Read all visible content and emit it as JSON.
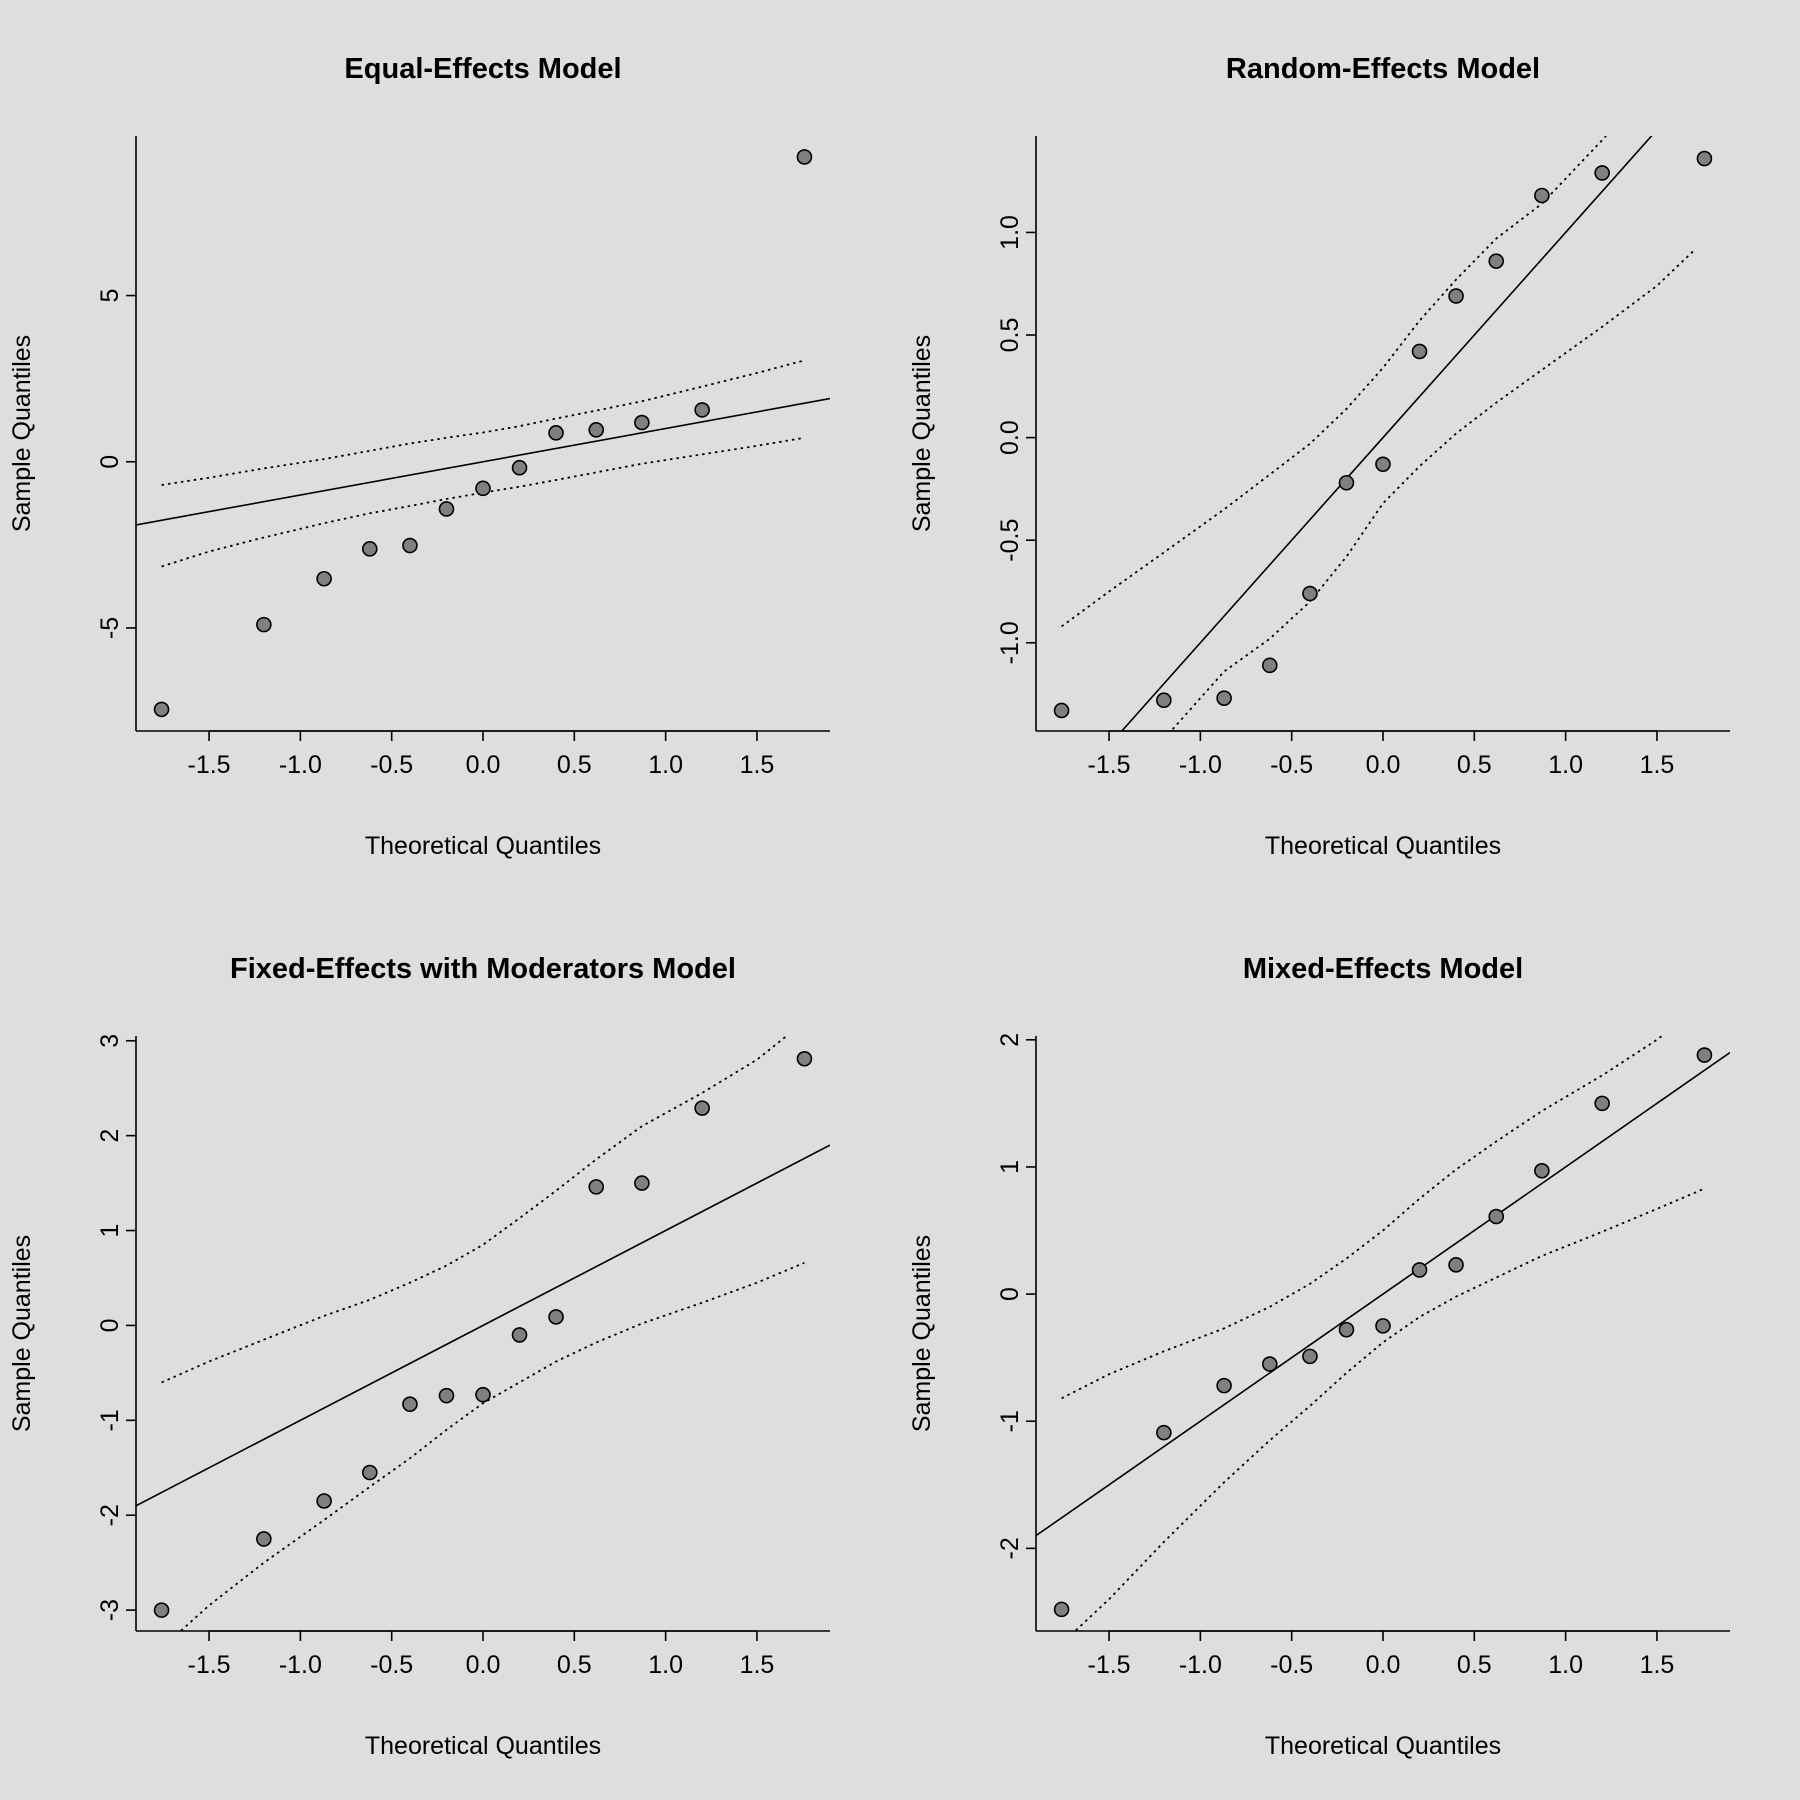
{
  "chart_data": [
    {
      "type": "scatter",
      "title": "Equal-Effects Model",
      "xlabel": "Theoretical Quantiles",
      "ylabel": "Sample Quantiles",
      "xlim": [
        -1.9,
        1.9
      ],
      "ylim": [
        -8.1,
        9.8
      ],
      "xticks": [
        -1.5,
        -1.0,
        -0.5,
        0.0,
        0.5,
        1.0,
        1.5
      ],
      "xtick_labels": [
        "-1.5",
        "-1.0",
        "-0.5",
        "0.0",
        "0.5",
        "1.0",
        "1.5"
      ],
      "yticks": [
        -5,
        0,
        5
      ],
      "ytick_labels": [
        "-5",
        "0",
        "5"
      ],
      "x": [
        -1.76,
        -1.2,
        -0.87,
        -0.62,
        -0.4,
        -0.2,
        0.0,
        0.2,
        0.4,
        0.62,
        0.87,
        1.2,
        1.76
      ],
      "y": [
        -7.45,
        -4.9,
        -3.52,
        -2.62,
        -2.52,
        -1.42,
        -0.8,
        -0.18,
        0.87,
        0.96,
        1.18,
        1.56,
        9.17
      ],
      "reference_line": {
        "intercept": 0.0,
        "slope": 1.0
      },
      "band_x": [
        -1.76,
        -1.5,
        -1.2,
        -0.87,
        -0.62,
        -0.4,
        -0.2,
        0.0,
        0.2,
        0.4,
        0.62,
        0.87,
        1.2,
        1.5,
        1.76
      ],
      "band_upper": [
        -0.7,
        -0.48,
        -0.2,
        0.08,
        0.33,
        0.55,
        0.72,
        0.88,
        1.07,
        1.3,
        1.54,
        1.82,
        2.26,
        2.67,
        3.05
      ],
      "band_lower": [
        -3.15,
        -2.7,
        -2.28,
        -1.85,
        -1.55,
        -1.33,
        -1.12,
        -0.93,
        -0.75,
        -0.55,
        -0.32,
        -0.06,
        0.22,
        0.48,
        0.72
      ]
    },
    {
      "type": "scatter",
      "title": "Random-Effects Model",
      "xlabel": "Theoretical Quantiles",
      "ylabel": "Sample Quantiles",
      "xlim": [
        -1.9,
        1.9
      ],
      "ylim": [
        -1.43,
        1.47
      ],
      "xticks": [
        -1.5,
        -1.0,
        -0.5,
        0.0,
        0.5,
        1.0,
        1.5
      ],
      "xtick_labels": [
        "-1.5",
        "-1.0",
        "-0.5",
        "0.0",
        "0.5",
        "1.0",
        "1.5"
      ],
      "yticks": [
        -1.0,
        -0.5,
        0.0,
        0.5,
        1.0
      ],
      "ytick_labels": [
        "-1.0",
        "-0.5",
        "0.0",
        "0.5",
        "1.0"
      ],
      "x": [
        -1.76,
        -1.2,
        -0.87,
        -0.62,
        -0.4,
        -0.2,
        0.0,
        0.2,
        0.4,
        0.62,
        0.87,
        1.2,
        1.76
      ],
      "y": [
        -1.33,
        -1.28,
        -1.27,
        -1.11,
        -0.76,
        -0.22,
        -0.13,
        0.42,
        0.69,
        0.86,
        1.18,
        1.29,
        1.36
      ],
      "reference_line": {
        "intercept": 0.0,
        "slope": 1.0
      },
      "band_x": [
        -1.76,
        -1.5,
        -1.2,
        -0.87,
        -0.62,
        -0.4,
        -0.2,
        0.0,
        0.2,
        0.4,
        0.62,
        0.87,
        1.2,
        1.5,
        1.7
      ],
      "band_upper": [
        -0.92,
        -0.75,
        -0.56,
        -0.35,
        -0.18,
        -0.03,
        0.14,
        0.34,
        0.57,
        0.77,
        0.97,
        1.14,
        1.45,
        1.75,
        2.0
      ],
      "band_lower": [
        -2.0,
        -1.75,
        -1.47,
        -1.14,
        -0.98,
        -0.8,
        -0.58,
        -0.32,
        -0.14,
        0.02,
        0.17,
        0.33,
        0.54,
        0.74,
        0.91
      ]
    },
    {
      "type": "scatter",
      "title": "Fixed-Effects with Moderators Model",
      "xlabel": "Theoretical Quantiles",
      "ylabel": "Sample Quantiles",
      "xlim": [
        -1.9,
        1.9
      ],
      "ylim": [
        -3.22,
        3.05
      ],
      "xticks": [
        -1.5,
        -1.0,
        -0.5,
        0.0,
        0.5,
        1.0,
        1.5
      ],
      "xtick_labels": [
        "-1.5",
        "-1.0",
        "-0.5",
        "0.0",
        "0.5",
        "1.0",
        "1.5"
      ],
      "yticks": [
        -3,
        -2,
        -1,
        0,
        1,
        2,
        3
      ],
      "ytick_labels": [
        "-3",
        "-2",
        "-1",
        "0",
        "1",
        "2",
        "3"
      ],
      "x": [
        -1.76,
        -1.2,
        -0.87,
        -0.62,
        -0.4,
        -0.2,
        0.0,
        0.2,
        0.4,
        0.62,
        0.87,
        1.2,
        1.76
      ],
      "y": [
        -3.0,
        -2.25,
        -1.85,
        -1.55,
        -0.83,
        -0.74,
        -0.73,
        -0.1,
        0.09,
        1.46,
        1.5,
        2.29,
        2.81
      ],
      "reference_line": {
        "intercept": 0.0,
        "slope": 1.0
      },
      "band_x": [
        -1.76,
        -1.5,
        -1.2,
        -0.87,
        -0.62,
        -0.4,
        -0.2,
        0.0,
        0.2,
        0.4,
        0.62,
        0.87,
        1.2,
        1.5,
        1.76
      ],
      "band_upper": [
        -0.6,
        -0.38,
        -0.15,
        0.1,
        0.27,
        0.45,
        0.63,
        0.85,
        1.13,
        1.42,
        1.75,
        2.1,
        2.45,
        2.8,
        3.2
      ],
      "band_lower": [
        -3.4,
        -2.95,
        -2.5,
        -2.05,
        -1.7,
        -1.4,
        -1.1,
        -0.82,
        -0.6,
        -0.38,
        -0.18,
        0.02,
        0.24,
        0.45,
        0.66
      ]
    },
    {
      "type": "scatter",
      "title": "Mixed-Effects Model",
      "xlabel": "Theoretical Quantiles",
      "ylabel": "Sample Quantiles",
      "xlim": [
        -1.9,
        1.9
      ],
      "ylim": [
        -2.65,
        2.03
      ],
      "xticks": [
        -1.5,
        -1.0,
        -0.5,
        0.0,
        0.5,
        1.0,
        1.5
      ],
      "xtick_labels": [
        "-1.5",
        "-1.0",
        "-0.5",
        "0.0",
        "0.5",
        "1.0",
        "1.5"
      ],
      "yticks": [
        -2,
        -1,
        0,
        1,
        2
      ],
      "ytick_labels": [
        "-2",
        "-1",
        "0",
        "1",
        "2"
      ],
      "x": [
        -1.76,
        -1.2,
        -0.87,
        -0.62,
        -0.4,
        -0.2,
        0.0,
        0.2,
        0.4,
        0.62,
        0.87,
        1.2,
        1.76
      ],
      "y": [
        -2.48,
        -1.09,
        -0.72,
        -0.55,
        -0.49,
        -0.28,
        -0.25,
        0.19,
        0.23,
        0.61,
        0.97,
        1.5,
        1.88
      ],
      "reference_line": {
        "intercept": 0.0,
        "slope": 1.0
      },
      "band_x": [
        -1.76,
        -1.5,
        -1.2,
        -0.87,
        -0.62,
        -0.4,
        -0.2,
        0.0,
        0.2,
        0.4,
        0.62,
        0.87,
        1.2,
        1.5,
        1.76
      ],
      "band_upper": [
        -0.82,
        -0.63,
        -0.45,
        -0.27,
        -0.1,
        0.08,
        0.28,
        0.5,
        0.75,
        0.98,
        1.2,
        1.44,
        1.72,
        2.0,
        2.3
      ],
      "band_lower": [
        -2.75,
        -2.4,
        -1.95,
        -1.48,
        -1.15,
        -0.88,
        -0.62,
        -0.38,
        -0.18,
        -0.02,
        0.13,
        0.3,
        0.49,
        0.67,
        0.83
      ]
    }
  ]
}
